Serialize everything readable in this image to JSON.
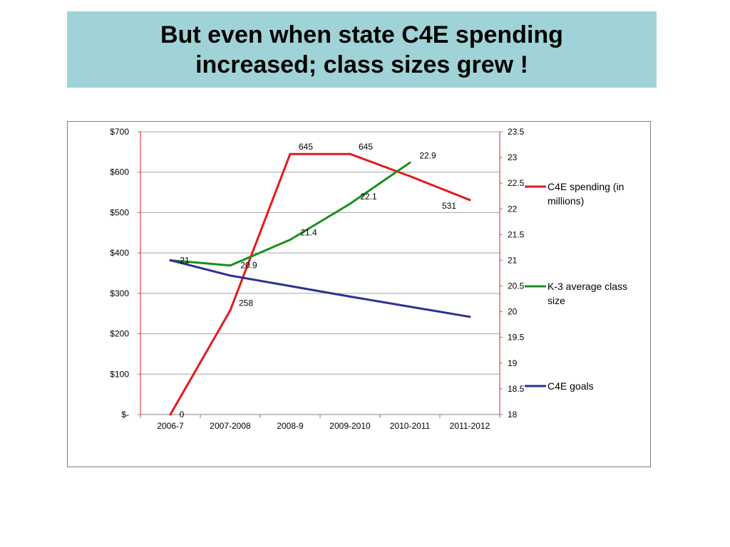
{
  "slide": {
    "title_lines": [
      "But even when state C4E spending",
      "increased; class sizes grew !"
    ]
  },
  "chart_data": {
    "type": "line",
    "categories": [
      "2006-7",
      "2007-2008",
      "2008-9",
      "2009-2010",
      "2010-2011",
      "2011-2012"
    ],
    "y_left": {
      "range": [
        0,
        700
      ],
      "ticks": [
        0,
        100,
        200,
        300,
        400,
        500,
        600,
        700
      ],
      "tick_labels": [
        "$-",
        "$100",
        "$200",
        "$300",
        "$400",
        "$500",
        "$600",
        "$700"
      ]
    },
    "y_right": {
      "range": [
        18,
        23.5
      ],
      "ticks": [
        18,
        18.5,
        19,
        19.5,
        20,
        20.5,
        21,
        21.5,
        22,
        22.5,
        23,
        23.5
      ],
      "tick_labels": [
        "18",
        "18.5",
        "19",
        "19.5",
        "20",
        "20.5",
        "21",
        "21.5",
        "22",
        "22.5",
        "23",
        "23.5"
      ]
    },
    "gridlines": true,
    "legend_position": "right",
    "series": [
      {
        "name": "C4E spending (in millions)",
        "axis": "left",
        "color": "#e31a1c",
        "values": [
          0,
          258,
          645,
          645,
          590,
          531
        ],
        "data_labels": [
          "0",
          "258",
          "645",
          "645",
          null,
          "531"
        ]
      },
      {
        "name": "K-3 average class size",
        "axis": "right",
        "color": "#1a8f1a",
        "values": [
          21,
          20.9,
          21.4,
          22.1,
          22.9,
          null
        ],
        "data_labels": [
          "21",
          "20.9",
          "21.4",
          "22.1",
          "22.9",
          null
        ]
      },
      {
        "name": "C4E goals",
        "axis": "left",
        "color": "#2e3192",
        "values": [
          382,
          344,
          318,
          292,
          267,
          242
        ],
        "data_labels": [
          null,
          null,
          null,
          null,
          null,
          null
        ]
      }
    ]
  }
}
